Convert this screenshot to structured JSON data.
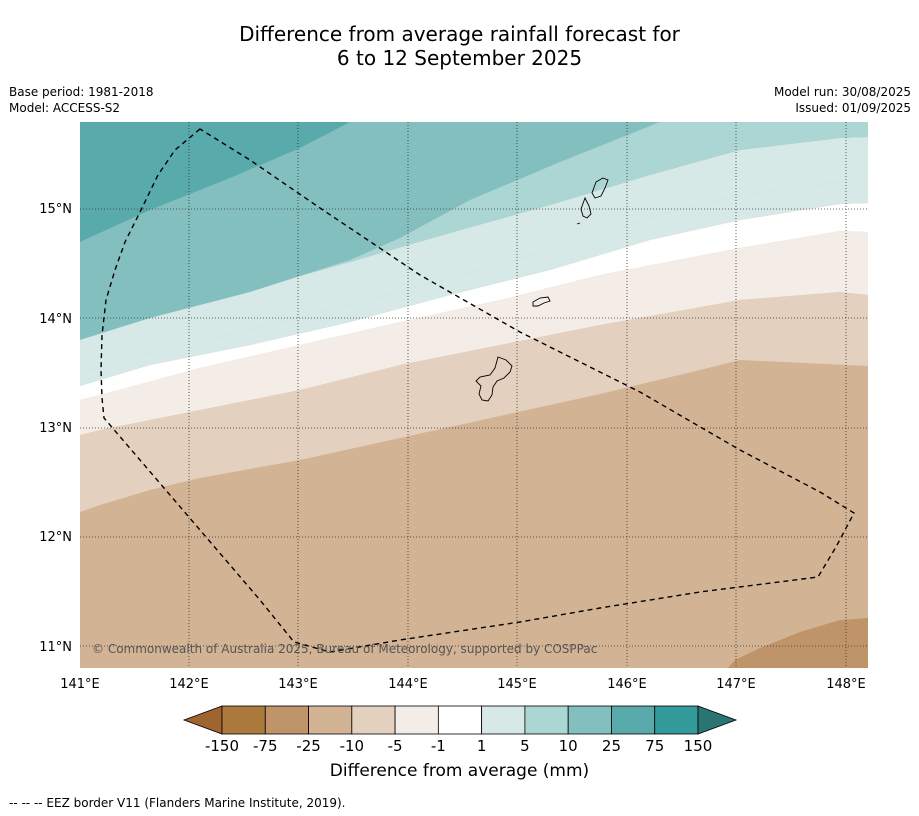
{
  "title_line1": "Difference from average rainfall forecast for",
  "title_line2": "6 to 12 September 2025",
  "meta_left": {
    "base_period": "Base period: 1981-2018",
    "model": "Model: ACCESS-S2"
  },
  "meta_right": {
    "model_run": "Model run: 30/08/2025",
    "issued": "Issued: 01/09/2025"
  },
  "map": {
    "lat_labels": [
      "15°N",
      "14°N",
      "13°N",
      "12°N",
      "11°N"
    ],
    "lon_labels": [
      "141°E",
      "142°E",
      "143°E",
      "144°E",
      "145°E",
      "146°E",
      "147°E",
      "148°E"
    ],
    "credit": "© Commonwealth of Australia 2025, Bureau of Meteorology, supported by COSPPac",
    "extent": {
      "lon_min": 141.0,
      "lon_max": 148.2,
      "lat_min": 10.8,
      "lat_max": 15.8
    }
  },
  "colorbar": {
    "title": "Difference from average (mm)",
    "tick_labels": [
      "-150",
      "-75",
      "-25",
      "-10",
      "-5",
      "-1",
      "1",
      "5",
      "10",
      "25",
      "75",
      "150"
    ],
    "colors": {
      "under": "#a0642f",
      "bins": [
        "#ad7a3e",
        "#bf9468",
        "#d2b394",
        "#e3d0be",
        "#f4ece6",
        "#ffffff",
        "#d6e9e7",
        "#acd6d4",
        "#84bfbf",
        "#58aaab",
        "#349999"
      ],
      "over": "#2a7473"
    }
  },
  "footnote": "--  --  -- EEZ border V11 (Flanders Marine Institute, 2019)."
}
